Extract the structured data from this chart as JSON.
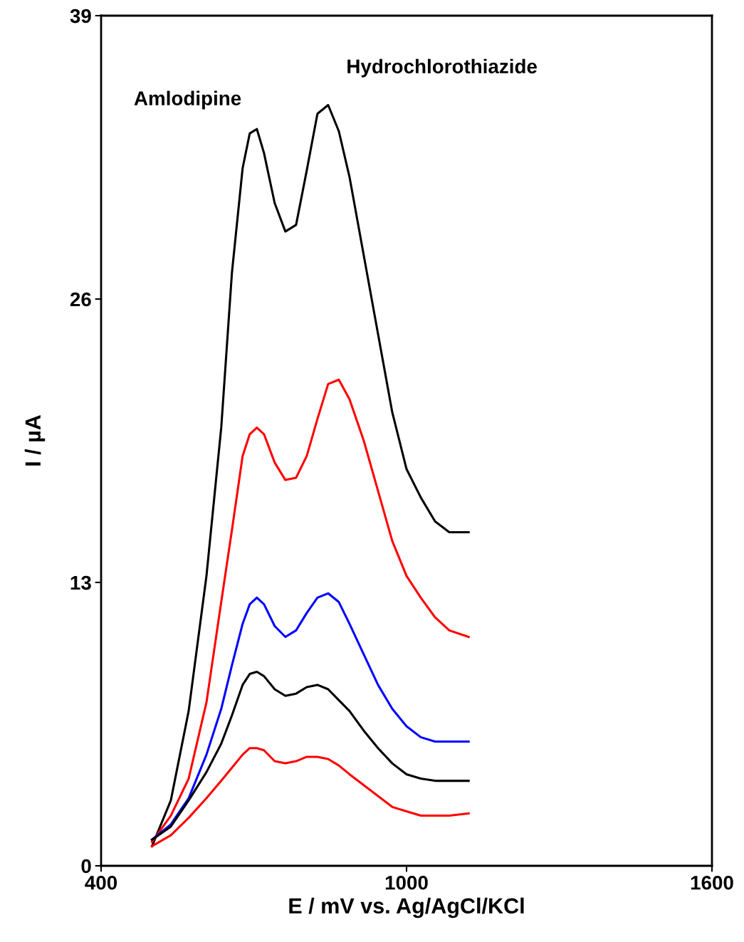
{
  "chart_data": {
    "type": "line",
    "xlabel": "E / mV vs. Ag/AgCl/KCl",
    "ylabel": "I / µA",
    "x": [
      500,
      537,
      572,
      607,
      636,
      657,
      678,
      692,
      706,
      720,
      741,
      762,
      783,
      804,
      825,
      846,
      867,
      888,
      916,
      944,
      972,
      1000,
      1028,
      1056,
      1084,
      1122
    ],
    "series": [
      {
        "color": "#000000",
        "values": [
          0.9,
          3.0,
          7.1,
          13.3,
          20.1,
          27.2,
          32.0,
          33.6,
          33.8,
          32.7,
          30.4,
          29.1,
          29.4,
          31.9,
          34.5,
          34.9,
          33.7,
          31.6,
          28.0,
          24.4,
          20.8,
          18.2,
          16.9,
          15.8,
          15.3,
          15.3
        ]
      },
      {
        "color": "#ff0000",
        "values": [
          1.1,
          2.3,
          4.0,
          7.5,
          12.1,
          15.4,
          18.8,
          19.8,
          20.1,
          19.8,
          18.5,
          17.7,
          17.8,
          18.8,
          20.5,
          22.1,
          22.3,
          21.4,
          19.5,
          17.2,
          14.9,
          13.3,
          12.3,
          11.4,
          10.8,
          10.5
        ]
      },
      {
        "color": "#0000ff",
        "values": [
          1.2,
          1.9,
          3.1,
          5.1,
          7.2,
          9.2,
          11.1,
          12.0,
          12.3,
          12.0,
          11.0,
          10.5,
          10.8,
          11.6,
          12.3,
          12.5,
          12.1,
          11.1,
          9.7,
          8.3,
          7.2,
          6.4,
          5.9,
          5.7,
          5.7,
          5.7
        ]
      },
      {
        "color": "#000000",
        "values": [
          1.2,
          1.8,
          3.0,
          4.3,
          5.6,
          6.9,
          8.3,
          8.8,
          8.9,
          8.7,
          8.1,
          7.8,
          7.9,
          8.2,
          8.3,
          8.1,
          7.6,
          7.1,
          6.2,
          5.4,
          4.7,
          4.2,
          4.0,
          3.9,
          3.9,
          3.9
        ]
      },
      {
        "color": "#ff0000",
        "values": [
          0.9,
          1.4,
          2.2,
          3.1,
          3.9,
          4.5,
          5.1,
          5.4,
          5.4,
          5.3,
          4.8,
          4.7,
          4.8,
          5.0,
          5.0,
          4.9,
          4.6,
          4.2,
          3.7,
          3.2,
          2.7,
          2.5,
          2.3,
          2.3,
          2.3,
          2.4
        ]
      }
    ],
    "annotations": [
      {
        "text": "Amlodipine",
        "x": 706,
        "y": 33.8
      },
      {
        "text": "Hydrochlorothiazide",
        "x": 846,
        "y": 34.9
      }
    ],
    "xlim": [
      400,
      1600
    ],
    "xticks": [
      400,
      1000,
      1600
    ],
    "ylim": [
      0,
      39
    ],
    "yticks": [
      0,
      13,
      26,
      39
    ],
    "grid": false,
    "marker": "none",
    "line_style": "solid"
  }
}
